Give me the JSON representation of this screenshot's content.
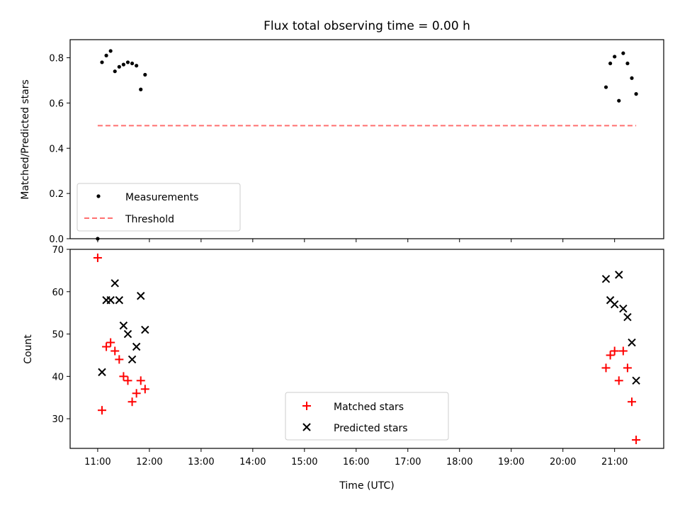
{
  "chart_data": {
    "type": "scatter",
    "title": "Flux total observing time = 0.00 h",
    "xlabel": "Time (UTC)",
    "xlim": [
      "10:28",
      "21:57"
    ],
    "x_ticks": [
      "11:00",
      "12:00",
      "13:00",
      "14:00",
      "15:00",
      "16:00",
      "17:00",
      "18:00",
      "19:00",
      "20:00",
      "21:00"
    ],
    "panels": [
      {
        "ylabel": "Matched/Predicted stars",
        "ylim": [
          0,
          0.88
        ],
        "y_ticks": [
          "0.0",
          "0.2",
          "0.4",
          "0.6",
          "0.8"
        ],
        "legend_position": "lower-left",
        "series": [
          {
            "name": "Measurements",
            "marker": "dot",
            "color": "#000000",
            "points": [
              {
                "x": "11:00",
                "y": 0.0
              },
              {
                "x": "11:05",
                "y": 0.78
              },
              {
                "x": "11:10",
                "y": 0.81
              },
              {
                "x": "11:15",
                "y": 0.83
              },
              {
                "x": "11:20",
                "y": 0.74
              },
              {
                "x": "11:25",
                "y": 0.76
              },
              {
                "x": "11:30",
                "y": 0.77
              },
              {
                "x": "11:35",
                "y": 0.78
              },
              {
                "x": "11:40",
                "y": 0.775
              },
              {
                "x": "11:45",
                "y": 0.765
              },
              {
                "x": "11:50",
                "y": 0.66
              },
              {
                "x": "11:55",
                "y": 0.725
              },
              {
                "x": "20:50",
                "y": 0.67
              },
              {
                "x": "20:55",
                "y": 0.775
              },
              {
                "x": "21:00",
                "y": 0.805
              },
              {
                "x": "21:05",
                "y": 0.61
              },
              {
                "x": "21:10",
                "y": 0.82
              },
              {
                "x": "21:15",
                "y": 0.775
              },
              {
                "x": "21:20",
                "y": 0.71
              },
              {
                "x": "21:25",
                "y": 0.64
              }
            ]
          },
          {
            "name": "Threshold",
            "marker": "dashed-line",
            "color": "#ff7070",
            "points": [
              {
                "x": "11:00",
                "y": 0.5
              },
              {
                "x": "21:25",
                "y": 0.5
              }
            ]
          }
        ]
      },
      {
        "ylabel": "Count",
        "ylim": [
          23,
          70
        ],
        "y_ticks": [
          "30",
          "40",
          "50",
          "60",
          "70"
        ],
        "legend_position": "lower-center",
        "series": [
          {
            "name": "Matched stars",
            "marker": "plus",
            "color": "#ff0000",
            "points": [
              {
                "x": "11:00",
                "y": 68
              },
              {
                "x": "11:05",
                "y": 32
              },
              {
                "x": "11:10",
                "y": 47
              },
              {
                "x": "11:15",
                "y": 48
              },
              {
                "x": "11:20",
                "y": 46
              },
              {
                "x": "11:25",
                "y": 44
              },
              {
                "x": "11:30",
                "y": 40
              },
              {
                "x": "11:35",
                "y": 39
              },
              {
                "x": "11:40",
                "y": 34
              },
              {
                "x": "11:45",
                "y": 36
              },
              {
                "x": "11:50",
                "y": 39
              },
              {
                "x": "11:55",
                "y": 37
              },
              {
                "x": "20:50",
                "y": 42
              },
              {
                "x": "20:55",
                "y": 45
              },
              {
                "x": "21:00",
                "y": 46
              },
              {
                "x": "21:05",
                "y": 39
              },
              {
                "x": "21:10",
                "y": 46
              },
              {
                "x": "21:15",
                "y": 42
              },
              {
                "x": "21:20",
                "y": 34
              },
              {
                "x": "21:25",
                "y": 25
              }
            ]
          },
          {
            "name": "Predicted stars",
            "marker": "x",
            "color": "#000000",
            "points": [
              {
                "x": "11:05",
                "y": 41
              },
              {
                "x": "11:10",
                "y": 58
              },
              {
                "x": "11:15",
                "y": 58
              },
              {
                "x": "11:20",
                "y": 62
              },
              {
                "x": "11:25",
                "y": 58
              },
              {
                "x": "11:30",
                "y": 52
              },
              {
                "x": "11:35",
                "y": 50
              },
              {
                "x": "11:40",
                "y": 44
              },
              {
                "x": "11:45",
                "y": 47
              },
              {
                "x": "11:50",
                "y": 59
              },
              {
                "x": "11:55",
                "y": 51
              },
              {
                "x": "20:50",
                "y": 63
              },
              {
                "x": "20:55",
                "y": 58
              },
              {
                "x": "21:00",
                "y": 57
              },
              {
                "x": "21:05",
                "y": 64
              },
              {
                "x": "21:10",
                "y": 56
              },
              {
                "x": "21:15",
                "y": 54
              },
              {
                "x": "21:20",
                "y": 48
              },
              {
                "x": "21:25",
                "y": 39
              }
            ]
          }
        ]
      }
    ]
  }
}
